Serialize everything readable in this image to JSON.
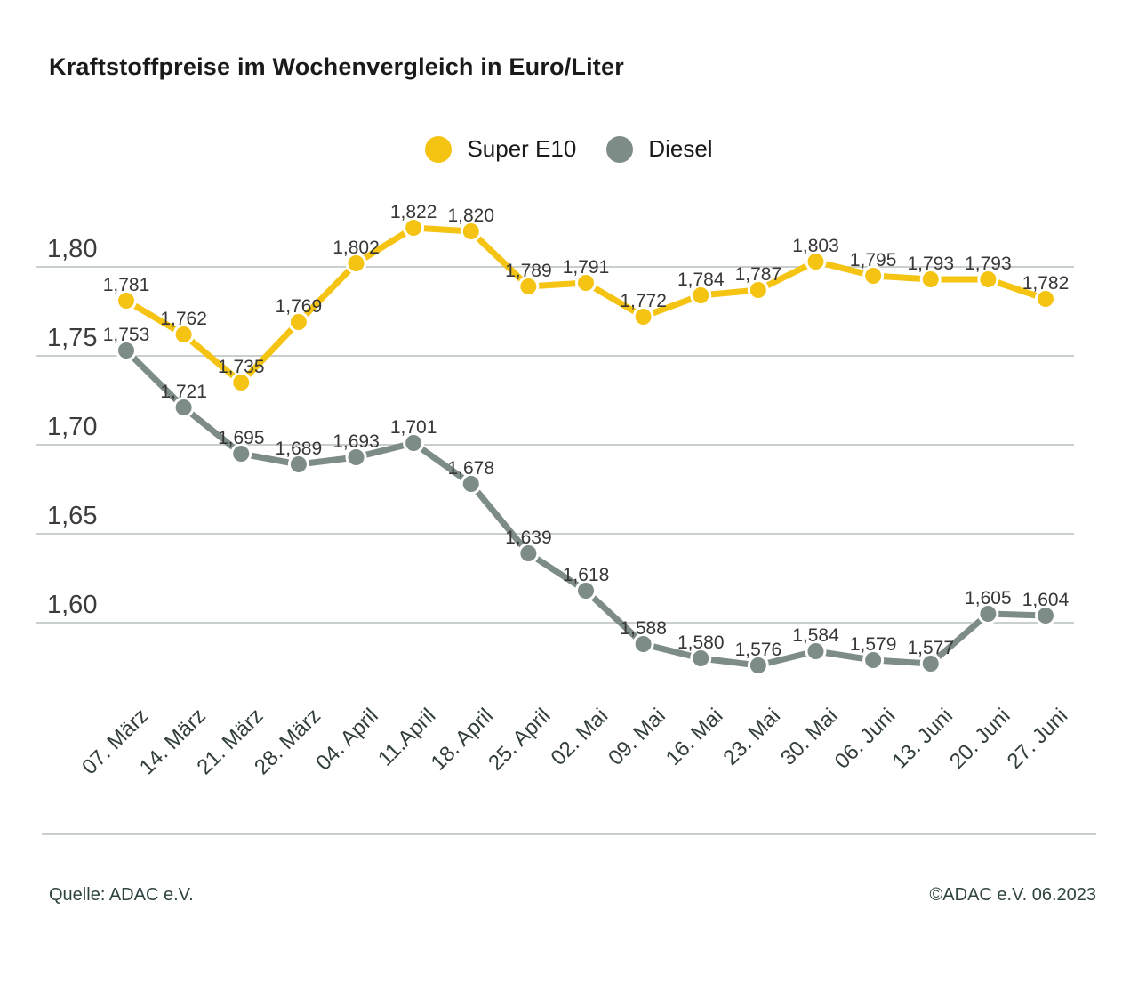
{
  "title": "Kraftstoffpreise im Wochenvergleich in Euro/Liter",
  "legend": {
    "items": [
      {
        "label": "Super E10",
        "color": "#F5C413"
      },
      {
        "label": "Diesel",
        "color": "#7E8C87"
      }
    ]
  },
  "footer": {
    "source": "Quelle: ADAC e.V.",
    "copyright": "©ADAC e.V. 06.2023"
  },
  "chart_data": {
    "type": "line",
    "title": "Kraftstoffpreise im Wochenvergleich in Euro/Liter",
    "unit": "Euro/Liter",
    "categories": [
      "07. März",
      "14. März",
      "21. März",
      "28. März",
      "04. April",
      "11.April",
      "18. April",
      "25. April",
      "02. Mai",
      "09. Mai",
      "16. Mai",
      "23. Mai",
      "30. Mai",
      "06. Juni",
      "13. Juni",
      "20. Juni",
      "27. Juni"
    ],
    "series": [
      {
        "name": "Super E10",
        "color": "#F5C413",
        "values": [
          1.781,
          1.762,
          1.735,
          1.769,
          1.802,
          1.822,
          1.82,
          1.789,
          1.791,
          1.772,
          1.784,
          1.787,
          1.803,
          1.795,
          1.793,
          1.793,
          1.782
        ]
      },
      {
        "name": "Diesel",
        "color": "#7E8C87",
        "values": [
          1.753,
          1.721,
          1.695,
          1.689,
          1.693,
          1.701,
          1.678,
          1.639,
          1.618,
          1.588,
          1.58,
          1.576,
          1.584,
          1.579,
          1.577,
          1.605,
          1.604
        ]
      }
    ],
    "yticks": [
      {
        "value": 1.8,
        "label": "1,80"
      },
      {
        "value": 1.75,
        "label": "1,75"
      },
      {
        "value": 1.7,
        "label": "1,70"
      },
      {
        "value": 1.65,
        "label": "1,65"
      },
      {
        "value": 1.6,
        "label": "1,60"
      }
    ],
    "ylim": [
      1.56,
      1.84
    ],
    "grid": true,
    "legend_position": "top",
    "decimal_separator": ",",
    "value_label_format": "0,000"
  },
  "colors": {
    "grid_line": "#C9CFCD",
    "axis_text": "#3C3C3B",
    "xaxis_text": "#333F3C",
    "data_label_text": "#373736",
    "divider": "#C7CECB",
    "footer_text": "#2F4440"
  }
}
